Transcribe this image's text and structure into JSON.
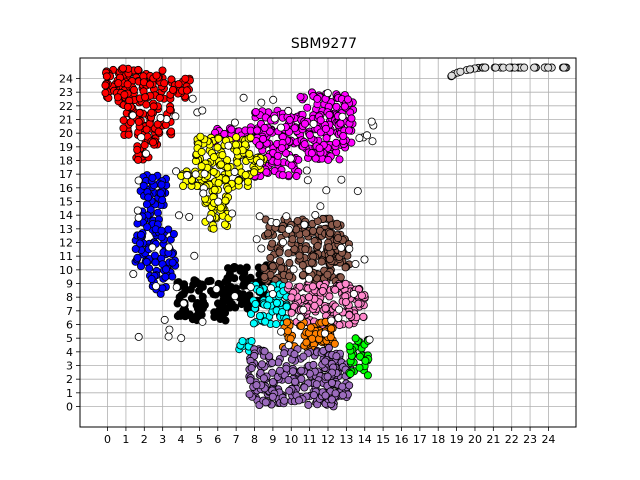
{
  "chart_data": {
    "type": "scatter",
    "title": "SBM9277",
    "xlabel": "",
    "ylabel": "",
    "xlim": [
      -1.5,
      25.5
    ],
    "ylim": [
      -1.5,
      25.5
    ],
    "x_ticks": [
      0,
      1,
      2,
      3,
      4,
      5,
      6,
      7,
      8,
      9,
      10,
      11,
      12,
      13,
      14,
      15,
      16,
      17,
      18,
      19,
      20,
      21,
      22,
      23,
      24
    ],
    "y_ticks": [
      0,
      1,
      2,
      3,
      4,
      5,
      6,
      7,
      8,
      9,
      10,
      11,
      12,
      13,
      14,
      15,
      16,
      17,
      18,
      19,
      20,
      21,
      22,
      23,
      24
    ],
    "grid": true,
    "marker": "circle",
    "clusters": [
      {
        "color": "#ff0000",
        "regions": [
          [
            -0.2,
            1.2,
            22.3,
            24.7
          ],
          [
            0.5,
            3.2,
            22.0,
            24.8
          ],
          [
            3.0,
            4.5,
            22.5,
            24.0
          ],
          [
            0.8,
            3.5,
            19.5,
            22.0
          ],
          [
            1.5,
            2.7,
            18.0,
            19.6
          ]
        ]
      },
      {
        "color": "#0000ff",
        "regions": [
          [
            1.8,
            3.3,
            14.0,
            17.0
          ],
          [
            1.5,
            2.8,
            9.8,
            14.0
          ],
          [
            2.8,
            3.7,
            9.3,
            13.0
          ],
          [
            2.3,
            3.3,
            8.2,
            9.6
          ]
        ]
      },
      {
        "color": "#ff00ff",
        "regions": [
          [
            5.8,
            8.8,
            19.0,
            20.5
          ],
          [
            8.0,
            10.6,
            16.8,
            21.7
          ],
          [
            10.5,
            13.0,
            18.0,
            23.0
          ],
          [
            12.5,
            13.4,
            19.2,
            22.6
          ]
        ]
      },
      {
        "color": "#ffff00",
        "regions": [
          [
            4.8,
            7.8,
            16.0,
            19.8
          ],
          [
            4.0,
            5.6,
            16.0,
            17.2
          ],
          [
            7.5,
            8.6,
            16.7,
            18.5
          ],
          [
            5.3,
            6.7,
            13.0,
            15.9
          ]
        ]
      },
      {
        "color": "#000000",
        "regions": [
          [
            3.8,
            6.8,
            6.2,
            9.3
          ],
          [
            6.5,
            7.8,
            7.0,
            10.3
          ],
          [
            8.0,
            8.9,
            7.5,
            10.4
          ]
        ]
      },
      {
        "color": "#8b5a4b",
        "regions": [
          [
            8.5,
            12.7,
            9.1,
            13.8
          ],
          [
            12.0,
            13.2,
            10.0,
            12.8
          ]
        ]
      },
      {
        "color": "#00ffff",
        "regions": [
          [
            7.8,
            9.8,
            5.8,
            9.0
          ],
          [
            6.8,
            7.9,
            4.0,
            4.8
          ]
        ]
      },
      {
        "color": "#ff88cc",
        "regions": [
          [
            9.8,
            13.8,
            5.9,
            9.0
          ],
          [
            12.8,
            14.1,
            6.5,
            8.2
          ]
        ]
      },
      {
        "color": "#ff8000",
        "regions": [
          [
            9.5,
            12.2,
            4.1,
            6.2
          ],
          [
            12.0,
            12.6,
            4.5,
            5.8
          ]
        ]
      },
      {
        "color": "#9b6bbd",
        "regions": [
          [
            7.7,
            12.6,
            0.0,
            4.3
          ],
          [
            11.8,
            13.2,
            0.5,
            4.0
          ]
        ]
      },
      {
        "color": "#00ff00",
        "regions": [
          [
            13.1,
            14.2,
            2.0,
            5.0
          ]
        ]
      },
      {
        "color": "#dddddd",
        "regions": [
          [
            18.7,
            25.0,
            24.1,
            24.8
          ]
        ]
      }
    ],
    "unassigned_color": "#ffffff"
  }
}
